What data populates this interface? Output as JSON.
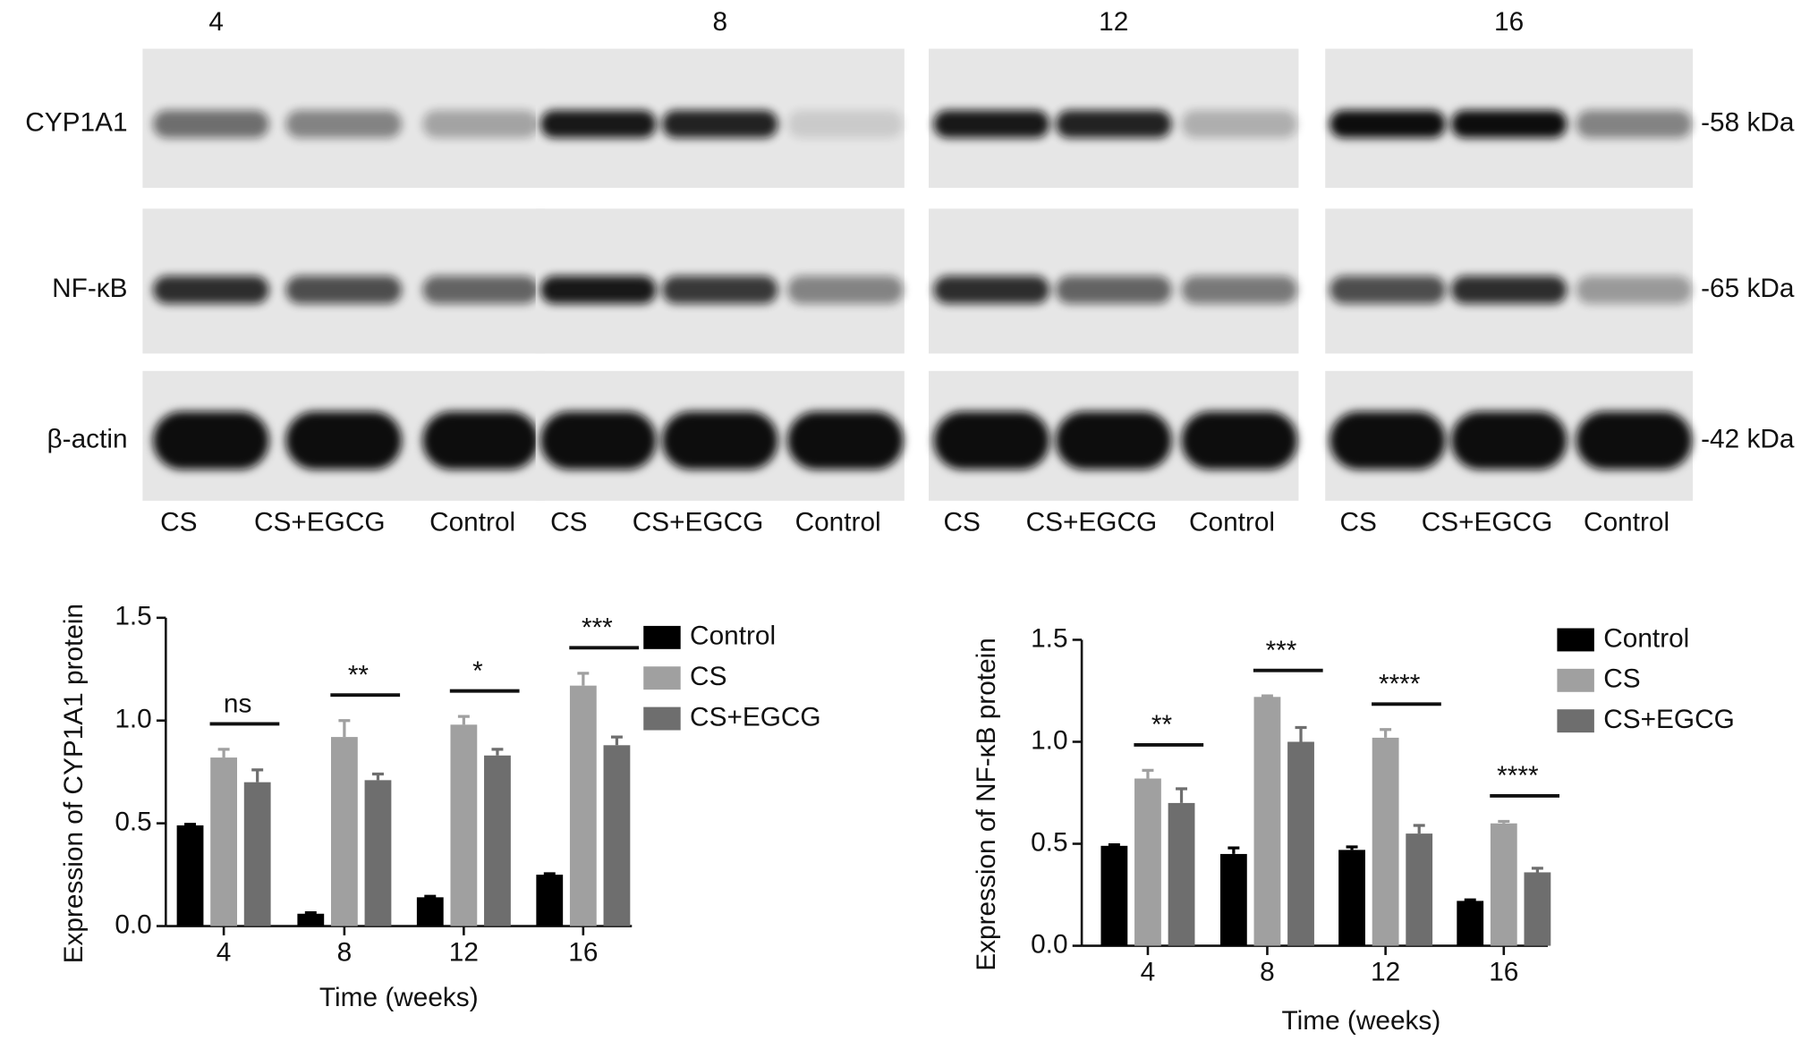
{
  "blot": {
    "time_labels": [
      "4",
      "8",
      "12",
      "16"
    ],
    "proteins": [
      {
        "name": "CYP1A1",
        "size": "-58 kDa"
      },
      {
        "name": "NF-κB",
        "size": "-65 kDa"
      },
      {
        "name": "β-actin",
        "size": "-42 kDa"
      }
    ],
    "lanes": [
      "CS",
      "CS+EGCG",
      "Control"
    ]
  },
  "chart_data": [
    {
      "type": "bar",
      "ylabel": "Expression of CYP1A1 protein",
      "xlabel": "Time (weeks)",
      "categories": [
        "4",
        "8",
        "12",
        "16"
      ],
      "series": [
        {
          "name": "Control",
          "color": "#000000",
          "values": [
            0.49,
            0.06,
            0.14,
            0.25
          ],
          "errors": [
            0.005,
            0.005,
            0.005,
            0.005
          ]
        },
        {
          "name": "CS",
          "color": "#a0a0a0",
          "values": [
            0.82,
            0.92,
            0.98,
            1.17
          ],
          "errors": [
            0.04,
            0.08,
            0.04,
            0.06
          ]
        },
        {
          "name": "CS+EGCG",
          "color": "#6e6e6e",
          "values": [
            0.7,
            0.71,
            0.83,
            0.88
          ],
          "errors": [
            0.06,
            0.03,
            0.03,
            0.04
          ]
        }
      ],
      "annotations": [
        "ns",
        "**",
        "*",
        "***"
      ],
      "ylim": [
        0,
        1.5
      ],
      "yticks": [
        {
          "value": 0,
          "label": "0.0"
        },
        0.5,
        {
          "value": 1,
          "label": "1.0"
        },
        1.5
      ]
    },
    {
      "type": "bar",
      "ylabel": "Expression of NF-κB protein",
      "xlabel": "Time (weeks)",
      "categories": [
        "4",
        "8",
        "12",
        "16"
      ],
      "series": [
        {
          "name": "Control",
          "color": "#000000",
          "values": [
            0.49,
            0.45,
            0.47,
            0.22
          ],
          "errors": [
            0.005,
            0.03,
            0.015,
            0.005
          ]
        },
        {
          "name": "CS",
          "color": "#a0a0a0",
          "values": [
            0.82,
            1.22,
            1.02,
            0.6
          ],
          "errors": [
            0.04,
            0.005,
            0.04,
            0.01
          ]
        },
        {
          "name": "CS+EGCG",
          "color": "#6e6e6e",
          "values": [
            0.7,
            1.0,
            0.55,
            0.36
          ],
          "errors": [
            0.07,
            0.07,
            0.04,
            0.02
          ]
        }
      ],
      "annotations": [
        "**",
        "***",
        "****",
        "****"
      ],
      "ylim": [
        0,
        1.5
      ],
      "yticks": [
        {
          "value": 0,
          "label": "0.0"
        },
        0.5,
        {
          "value": 1,
          "label": "1.0"
        },
        1.5
      ]
    }
  ]
}
